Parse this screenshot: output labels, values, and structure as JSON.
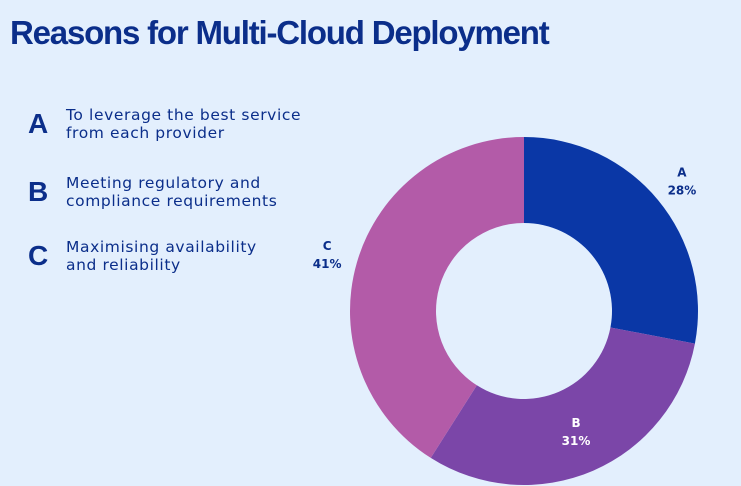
{
  "chart_data": {
    "type": "pie",
    "variant": "donut",
    "title": "Reasons for Multi-Cloud Deployment",
    "categories": [
      "A",
      "B",
      "C"
    ],
    "values": [
      28,
      31,
      41
    ],
    "colors": [
      "#0a37a6",
      "#7b46a8",
      "#b35ba8"
    ],
    "data_labels": [
      {
        "letter": "A",
        "pct": "28%"
      },
      {
        "letter": "B",
        "pct": "31%"
      },
      {
        "letter": "C",
        "pct": "41%"
      }
    ],
    "legend_placement": "left"
  },
  "legend": [
    {
      "letter": "A",
      "line1": "To leverage the best service",
      "line2": "from each provider"
    },
    {
      "letter": "B",
      "line1": "Meeting regulatory and",
      "line2": "compliance requirements"
    },
    {
      "letter": "C",
      "line1": "Maximising availability",
      "line2": "and reliability"
    }
  ]
}
